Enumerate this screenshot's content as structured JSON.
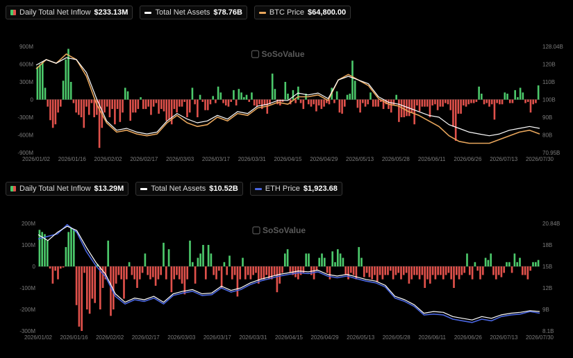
{
  "colors": {
    "inflow_pos": "#4cc96b",
    "inflow_neg": "#e0514b",
    "assets_line": "#ffffff",
    "btc_line": "#e8a65c",
    "eth_line": "#4a66e0"
  },
  "watermark": "SoSoValue",
  "x_dates": [
    "2026/01/02",
    "2026/01/16",
    "2026/02/02",
    "2026/02/17",
    "2026/03/03",
    "2026/03/17",
    "2026/03/31",
    "2026/04/15",
    "2026/04/29",
    "2026/05/13",
    "2026/05/28",
    "2026/06/11",
    "2026/06/26",
    "2026/07/13",
    "2026/07/30"
  ],
  "chart_data": [
    {
      "type": "bar",
      "legend": [
        {
          "label": "Daily Total Net Inflow",
          "value": "$233.13M"
        },
        {
          "label": "Total Net Assets",
          "value": "$78.76B"
        },
        {
          "label": "BTC Price",
          "value": "$64,800.00"
        }
      ],
      "y_left_ticks": [
        "900M",
        "600M",
        "300M",
        "0",
        "-300M",
        "-600M",
        "-900M"
      ],
      "ylim_left": [
        -900,
        900
      ],
      "y_right_ticks": [
        "128.04B",
        "120B",
        "110B",
        "100B",
        "90B",
        "80B",
        "70.95B"
      ],
      "ylim_right": [
        70.95,
        128.04
      ],
      "inflow": [
        560,
        600,
        640,
        200,
        -120,
        -350,
        -480,
        -420,
        -220,
        -120,
        320,
        680,
        860,
        300,
        -60,
        -220,
        -260,
        -300,
        -480,
        -120,
        -260,
        -60,
        -300,
        -260,
        -820,
        -480,
        -220,
        -120,
        -300,
        -160,
        -420,
        -160,
        -380,
        -220,
        200,
        140,
        -360,
        -220,
        -220,
        -160,
        40,
        -160,
        -160,
        -120,
        -260,
        -120,
        -60,
        -240,
        -160,
        -200,
        -360,
        -340,
        -420,
        -160,
        -220,
        -120,
        -120,
        -40,
        -300,
        -220,
        200,
        -80,
        -300,
        80,
        -40,
        -180,
        -180,
        -80,
        60,
        -60,
        220,
        120,
        -60,
        -100,
        -120,
        -40,
        160,
        -100,
        180,
        120,
        40,
        80,
        -40,
        120,
        -100,
        -120,
        -80,
        -160,
        -100,
        -240,
        -80,
        440,
        180,
        -80,
        -100,
        -40,
        300,
        100,
        -80,
        160,
        -60,
        220,
        -60,
        -160,
        100,
        -80,
        -120,
        -80,
        -200,
        -100,
        -160,
        -120,
        -60,
        -80,
        200,
        -60,
        140,
        -220,
        -240,
        -120,
        80,
        100,
        660,
        320,
        -140,
        -220,
        -60,
        -120,
        -80,
        120,
        -120,
        -120,
        -120,
        -40,
        -160,
        -80,
        -160,
        -220,
        -100,
        80,
        -380,
        -300,
        -300,
        -280,
        -280,
        -220,
        -420,
        -100,
        -200,
        -120,
        -120,
        -120,
        -300,
        -100,
        -80,
        -180,
        -120,
        -120,
        -60,
        -80,
        -180,
        -460,
        -700,
        -240,
        -240,
        -100,
        -120,
        -80,
        -60,
        -60,
        -40,
        220,
        100,
        -80,
        -60,
        -120,
        -80,
        -340,
        -60,
        -80,
        -80,
        120,
        100,
        -60,
        -60,
        160,
        40,
        200,
        120,
        -60,
        -40,
        -220,
        -80,
        -60,
        240
      ],
      "assets_anchor_values": [
        118,
        121,
        119,
        122,
        121,
        114,
        100,
        88,
        83,
        84,
        82,
        81,
        82,
        88,
        92,
        89,
        87,
        88,
        91,
        89,
        93,
        92,
        96,
        97,
        99,
        99,
        103,
        102,
        103,
        100,
        110,
        112,
        110,
        108,
        101,
        98,
        97,
        95,
        93,
        91,
        90,
        86,
        84,
        82,
        81,
        80,
        81,
        83,
        84,
        85,
        84
      ],
      "price_anchor_values": [
        116,
        121,
        119,
        124,
        121,
        112,
        97,
        87,
        82,
        83,
        81,
        80,
        81,
        87,
        91,
        87,
        85,
        86,
        90,
        88,
        92,
        91,
        95,
        96,
        98,
        97,
        101,
        101,
        102,
        99,
        110,
        113,
        110,
        107,
        100,
        97,
        96,
        93,
        91,
        88,
        85,
        80,
        77,
        76,
        76,
        76,
        78,
        80,
        82,
        83,
        81
      ]
    },
    {
      "type": "bar",
      "legend": [
        {
          "label": "Daily Total Net Inflow",
          "value": "$13.29M"
        },
        {
          "label": "Total Net Assets",
          "value": "$10.52B"
        },
        {
          "label": "ETH Price",
          "value": "$1,923.68"
        }
      ],
      "y_left_ticks": [
        "200M",
        "100M",
        "0",
        "-100M",
        "-200M",
        "-300M"
      ],
      "ylim_left": [
        -300,
        200
      ],
      "y_right_ticks": [
        "20.84B",
        "18B",
        "15B",
        "12B",
        "9B",
        "8.1B"
      ],
      "ylim_right": [
        8.1,
        20.84
      ],
      "inflow": [
        170,
        160,
        150,
        120,
        -10,
        -80,
        -20,
        -60,
        -10,
        -5,
        90,
        160,
        180,
        170,
        -180,
        -280,
        -300,
        -30,
        -200,
        -220,
        -150,
        -170,
        10,
        -200,
        -100,
        -60,
        120,
        -230,
        -200,
        -80,
        -40,
        -60,
        -150,
        -60,
        20,
        -40,
        -60,
        -100,
        -60,
        -30,
        60,
        -40,
        -60,
        -50,
        -90,
        -60,
        -40,
        110,
        -60,
        80,
        -120,
        -60,
        -40,
        -60,
        -80,
        -130,
        -60,
        120,
        20,
        -80,
        40,
        60,
        100,
        -60,
        100,
        60,
        -40,
        -60,
        -20,
        -100,
        20,
        -40,
        50,
        -60,
        -40,
        -140,
        -60,
        40,
        -60,
        -40,
        -60,
        -40,
        -30,
        -80,
        -60,
        -60,
        -40,
        -60,
        -60,
        -40,
        -120,
        -80,
        -30,
        60,
        80,
        -30,
        -40,
        -50,
        -60,
        -40,
        -30,
        60,
        60,
        -40,
        -60,
        -20,
        40,
        60,
        40,
        -30,
        -60,
        70,
        20,
        80,
        60,
        40,
        -40,
        -60,
        -30,
        -40,
        -60,
        90,
        40,
        -50,
        -30,
        -50,
        -60,
        -40,
        -70,
        -40,
        -60,
        -40,
        -40,
        -20,
        -60,
        -40,
        -30,
        -60,
        -40,
        -30,
        -80,
        -60,
        -40,
        -40,
        -60,
        -40,
        -100,
        -60,
        -80,
        -40,
        -60,
        -40,
        -40,
        -60,
        -40,
        -30,
        -60,
        -100,
        -40,
        -60,
        -40,
        -30,
        60,
        -40,
        -60,
        20,
        -20,
        -60,
        -40,
        40,
        30,
        60,
        -40,
        -60,
        -40,
        -50,
        -30,
        20,
        20,
        -30,
        60,
        20,
        40,
        -40,
        -40,
        -60,
        -20,
        20,
        20,
        30
      ],
      "assets_anchor_values": [
        19.5,
        18.8,
        19.8,
        20.5,
        20,
        18,
        16.2,
        14.8,
        12.5,
        11.5,
        12,
        11.8,
        12.2,
        11.5,
        12.5,
        12.8,
        13,
        12.5,
        12.6,
        13.4,
        12.9,
        13.2,
        13.8,
        14.2,
        14.5,
        14.8,
        15,
        15.2,
        15.1,
        15.3,
        14.8,
        14.6,
        14.8,
        14.5,
        14.2,
        14,
        13.5,
        12.2,
        11.8,
        11.2,
        10.2,
        10.4,
        10.3,
        9.8,
        9.6,
        9.4,
        9.8,
        9.6,
        10,
        10.2,
        10.3,
        10.5,
        10.4
      ],
      "price_anchor_values": [
        19,
        19.3,
        19.6,
        20.7,
        19.8,
        17.5,
        15.8,
        14.5,
        12.2,
        11.3,
        11.8,
        11.6,
        12,
        11.3,
        12.3,
        12.6,
        12.8,
        12.3,
        12.4,
        13.2,
        12.7,
        13,
        13.6,
        14,
        14.3,
        14.6,
        14.8,
        15,
        14.9,
        15.1,
        14.6,
        14.4,
        14.6,
        14.3,
        14,
        13.8,
        13.3,
        12,
        11.6,
        11,
        10,
        10.1,
        10,
        9.5,
        9.3,
        9.1,
        9.5,
        9.3,
        9.8,
        10,
        10.1,
        10.4,
        10.2
      ]
    }
  ]
}
